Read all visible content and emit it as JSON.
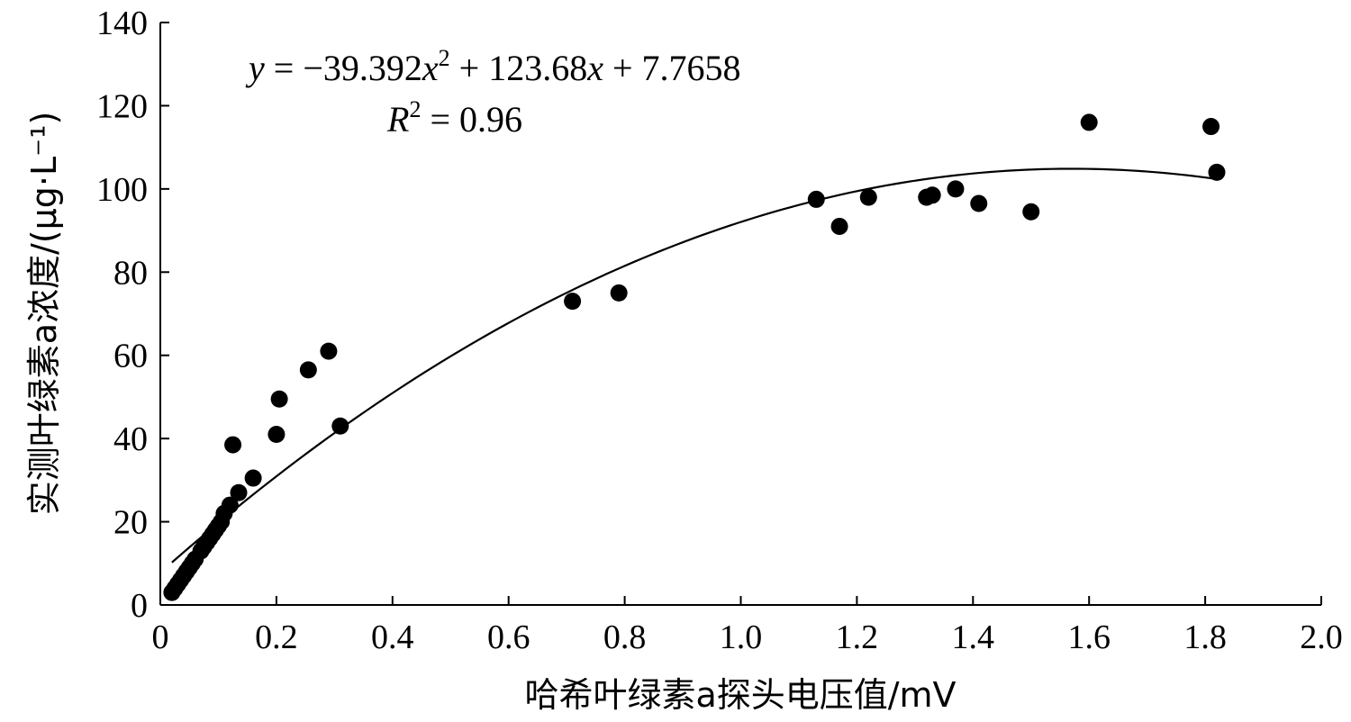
{
  "chart_data": {
    "type": "scatter",
    "xlabel": "哈希叶绿素a探头电压值/mV",
    "ylabel": "实测叶绿素a浓度/(μg·L⁻¹)",
    "xlim": [
      0,
      2.0
    ],
    "ylim": [
      0,
      140
    ],
    "x_ticks": [
      "0",
      "0.2",
      "0.4",
      "0.6",
      "0.8",
      "1.0",
      "1.2",
      "1.4",
      "1.6",
      "1.8",
      "2.0"
    ],
    "y_ticks": [
      "0",
      "20",
      "40",
      "60",
      "80",
      "100",
      "120",
      "140"
    ],
    "grid": false,
    "points": [
      {
        "x": 0.02,
        "y": 3
      },
      {
        "x": 0.025,
        "y": 4
      },
      {
        "x": 0.03,
        "y": 5
      },
      {
        "x": 0.035,
        "y": 6
      },
      {
        "x": 0.04,
        "y": 7
      },
      {
        "x": 0.045,
        "y": 8
      },
      {
        "x": 0.05,
        "y": 9
      },
      {
        "x": 0.055,
        "y": 10
      },
      {
        "x": 0.06,
        "y": 11
      },
      {
        "x": 0.07,
        "y": 13
      },
      {
        "x": 0.075,
        "y": 14
      },
      {
        "x": 0.08,
        "y": 15
      },
      {
        "x": 0.085,
        "y": 16
      },
      {
        "x": 0.09,
        "y": 17
      },
      {
        "x": 0.095,
        "y": 18
      },
      {
        "x": 0.1,
        "y": 19
      },
      {
        "x": 0.105,
        "y": 20
      },
      {
        "x": 0.11,
        "y": 22
      },
      {
        "x": 0.12,
        "y": 24
      },
      {
        "x": 0.135,
        "y": 27
      },
      {
        "x": 0.125,
        "y": 38.5
      },
      {
        "x": 0.16,
        "y": 30.5
      },
      {
        "x": 0.2,
        "y": 41
      },
      {
        "x": 0.205,
        "y": 49.5
      },
      {
        "x": 0.255,
        "y": 56.5
      },
      {
        "x": 0.29,
        "y": 61
      },
      {
        "x": 0.31,
        "y": 43
      },
      {
        "x": 0.71,
        "y": 73
      },
      {
        "x": 0.79,
        "y": 75
      },
      {
        "x": 1.13,
        "y": 97.5
      },
      {
        "x": 1.17,
        "y": 91
      },
      {
        "x": 1.22,
        "y": 98
      },
      {
        "x": 1.32,
        "y": 98
      },
      {
        "x": 1.33,
        "y": 98.5
      },
      {
        "x": 1.37,
        "y": 100
      },
      {
        "x": 1.41,
        "y": 96.5
      },
      {
        "x": 1.5,
        "y": 94.5
      },
      {
        "x": 1.6,
        "y": 116
      },
      {
        "x": 1.81,
        "y": 115
      },
      {
        "x": 1.82,
        "y": 104
      }
    ],
    "fit": {
      "type": "polynomial",
      "coefficients": [
        -39.392,
        123.68,
        7.7658
      ],
      "x_range": [
        0.02,
        1.82
      ],
      "r_squared": 0.96
    },
    "annotations": {
      "equation": {
        "y": "y",
        "eq1": " = −39.392",
        "x1": "x",
        "pow": "2",
        "eq2": " + 123.68",
        "x2": "x",
        "eq3": " + 7.7658"
      },
      "r2": {
        "r": "R",
        "pow": "2",
        "rest": " = 0.96"
      }
    }
  }
}
